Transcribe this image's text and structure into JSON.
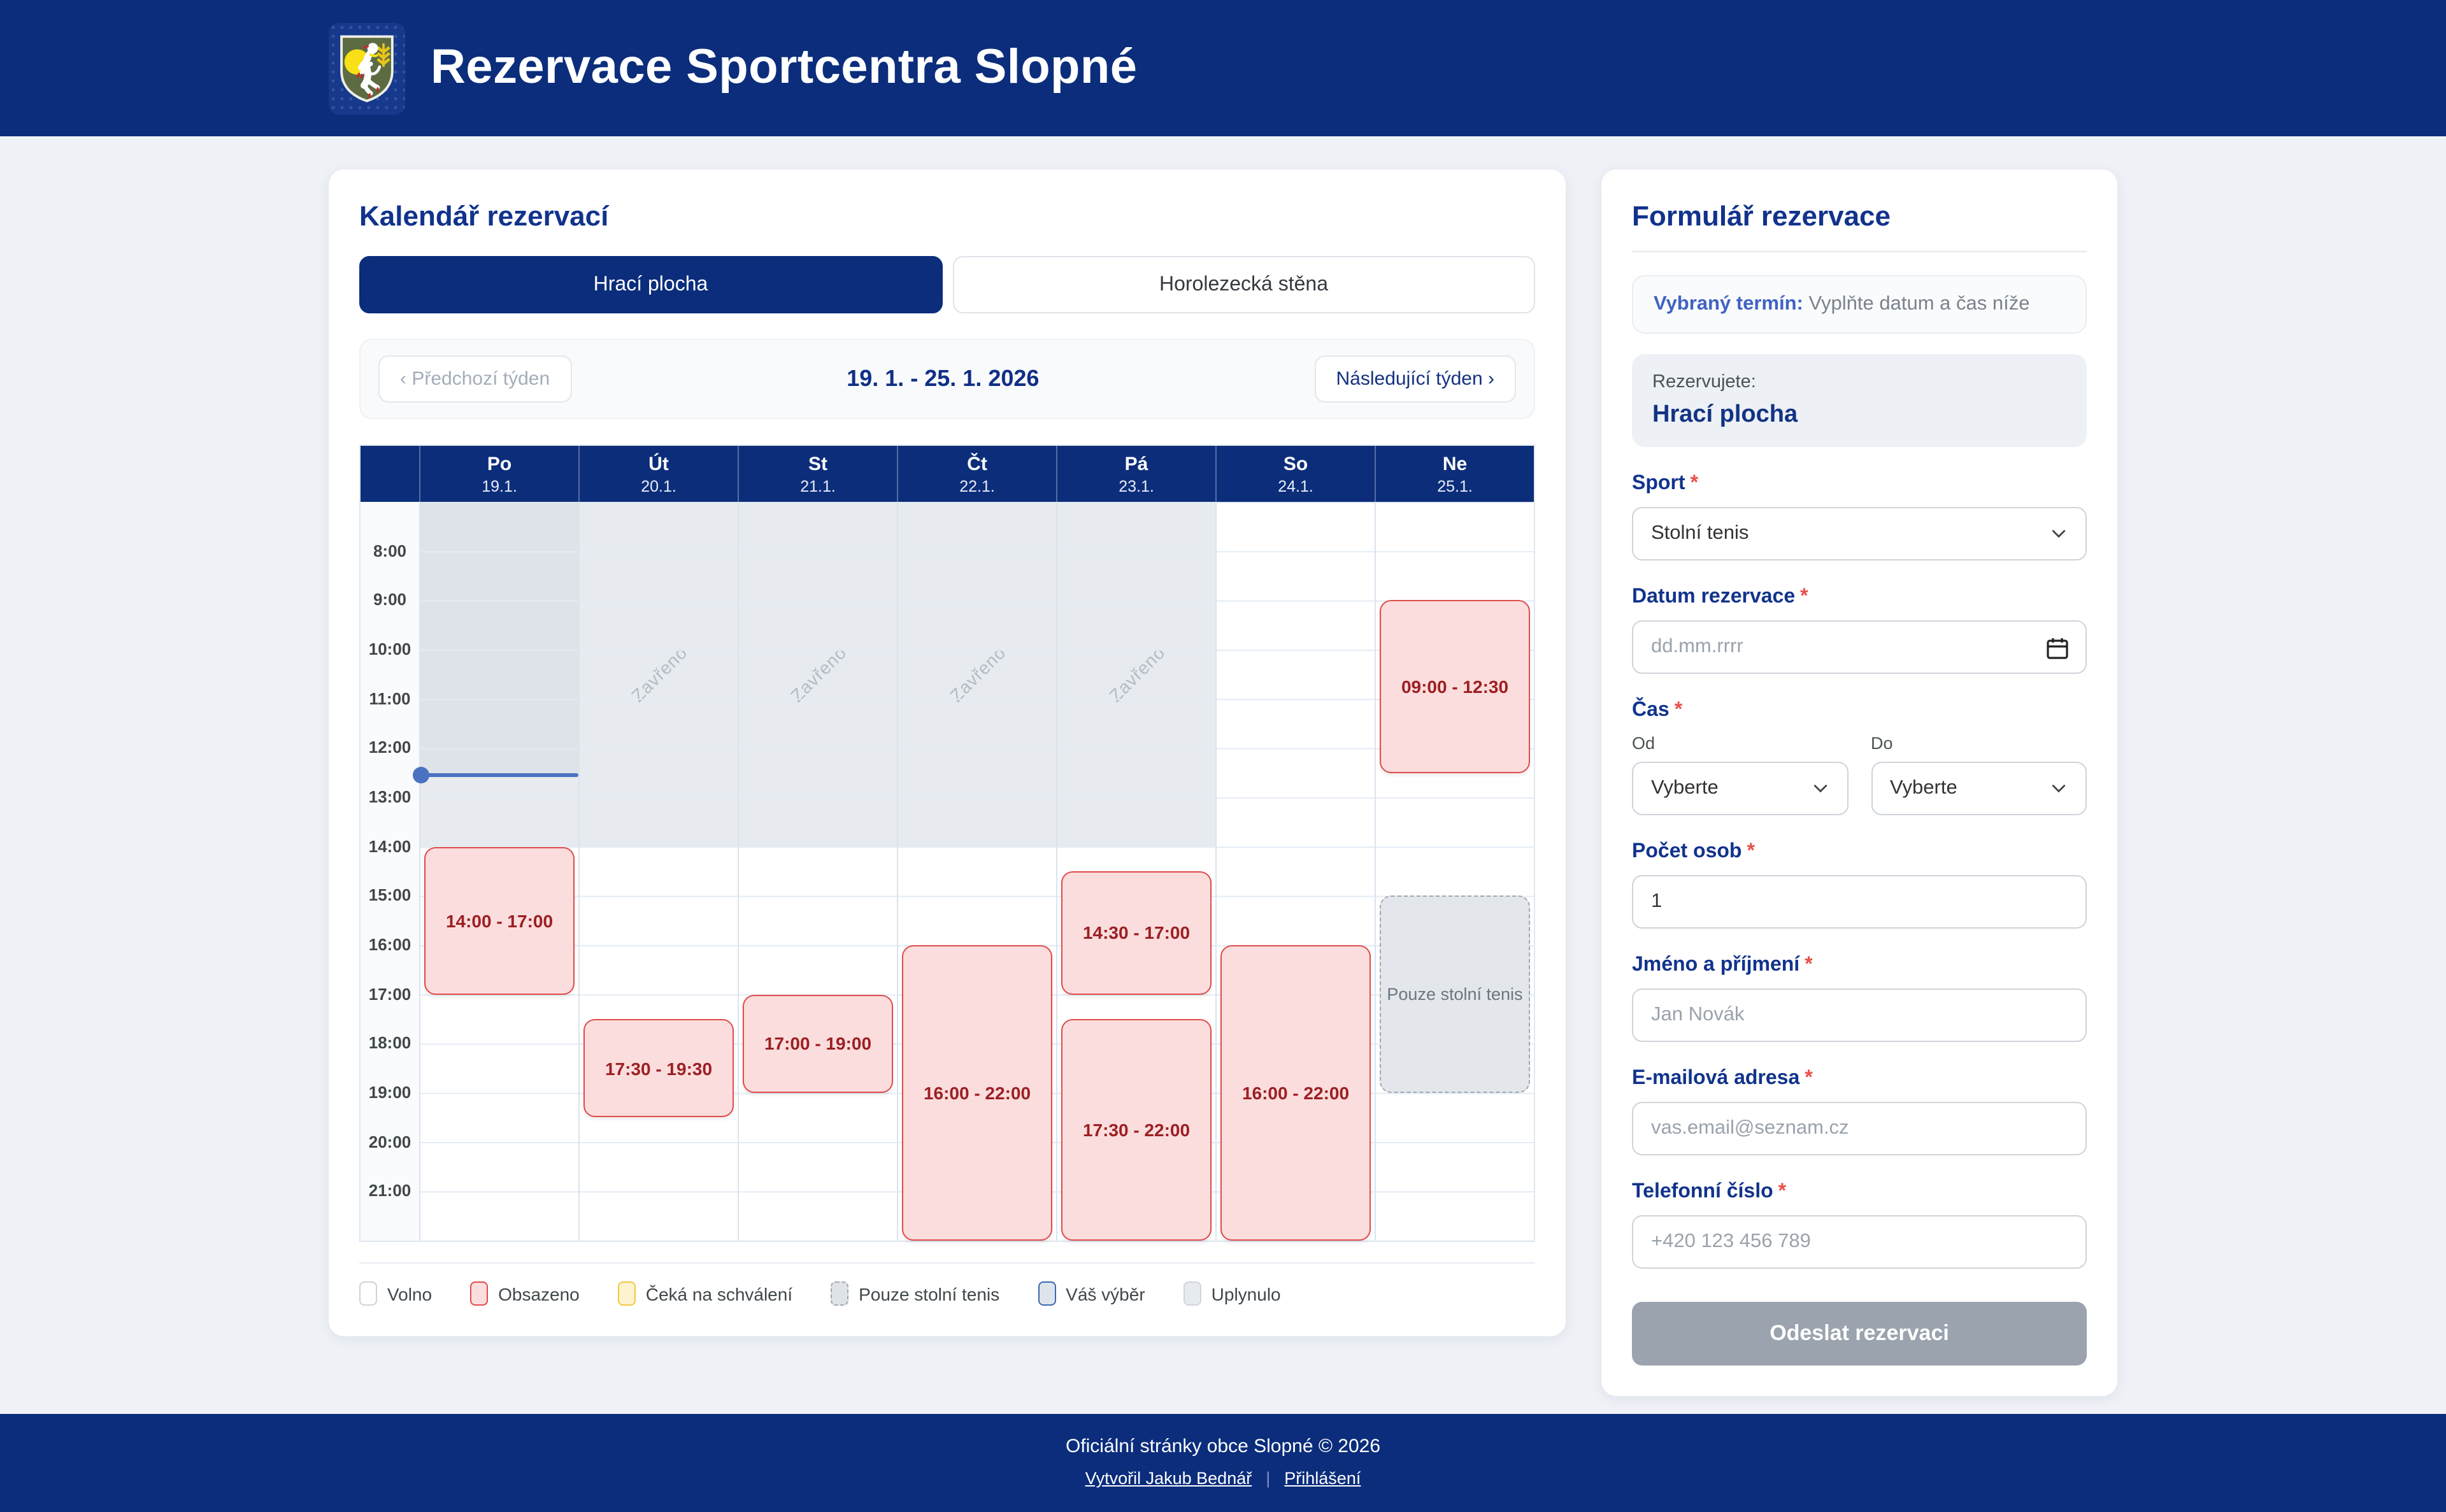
{
  "app": {
    "title": "Rezervace Sportcentra Slopné",
    "logo": "slopne-coat-of-arms"
  },
  "calendar": {
    "title": "Kalendář rezervací",
    "tabs": [
      {
        "label": "Hrací plocha",
        "active": true
      },
      {
        "label": "Horolezecká stěna",
        "active": false
      }
    ],
    "week_nav": {
      "prev": "‹ Předchozí týden",
      "range": "19. 1. - 25. 1. 2026",
      "next": "Následující týden ›",
      "prev_disabled": true
    },
    "grid": {
      "day_start_hour": 7,
      "day_end_hour": 22,
      "hour_labels": [
        "8:00",
        "9:00",
        "10:00",
        "11:00",
        "12:00",
        "13:00",
        "14:00",
        "15:00",
        "16:00",
        "17:00",
        "18:00",
        "19:00",
        "20:00",
        "21:00"
      ],
      "closed_text": "Zavřeno",
      "now": {
        "day": "Po",
        "time": "12:30"
      }
    },
    "days": [
      {
        "name": "Po",
        "date": "19.1.",
        "closed_until": "14:00",
        "past_until": "12:30",
        "events": [
          {
            "label": "14:00 - 17:00",
            "start": "14:00",
            "end": "17:00",
            "status": "obsazeno"
          }
        ]
      },
      {
        "name": "Út",
        "date": "20.1.",
        "closed_until": "14:00",
        "events": [
          {
            "label": "17:30 - 19:30",
            "start": "17:30",
            "end": "19:30",
            "status": "obsazeno"
          }
        ]
      },
      {
        "name": "St",
        "date": "21.1.",
        "closed_until": "14:00",
        "events": [
          {
            "label": "17:00 - 19:00",
            "start": "17:00",
            "end": "19:00",
            "status": "obsazeno"
          }
        ]
      },
      {
        "name": "Čt",
        "date": "22.1.",
        "closed_until": "14:00",
        "events": [
          {
            "label": "16:00 - 22:00",
            "start": "16:00",
            "end": "22:00",
            "status": "obsazeno"
          }
        ]
      },
      {
        "name": "Pá",
        "date": "23.1.",
        "closed_until": "14:00",
        "events": [
          {
            "label": "14:30 - 17:00",
            "start": "14:30",
            "end": "17:00",
            "status": "obsazeno"
          },
          {
            "label": "17:30 - 22:00",
            "start": "17:30",
            "end": "22:00",
            "status": "obsazeno"
          }
        ]
      },
      {
        "name": "So",
        "date": "24.1.",
        "events": [
          {
            "label": "16:00 - 22:00",
            "start": "16:00",
            "end": "22:00",
            "status": "obsazeno"
          }
        ]
      },
      {
        "name": "Ne",
        "date": "25.1.",
        "events": [
          {
            "label": "09:00 - 12:30",
            "start": "09:00",
            "end": "12:30",
            "status": "obsazeno"
          },
          {
            "label": "Pouze stolní tenis",
            "start": "15:00",
            "end": "19:00",
            "status": "pouze"
          }
        ]
      }
    ],
    "legend": [
      {
        "label": "Volno",
        "key": "volno"
      },
      {
        "label": "Obsazeno",
        "key": "obsazeno"
      },
      {
        "label": "Čeká na schválení",
        "key": "ceka"
      },
      {
        "label": "Pouze stolní tenis",
        "key": "pouze"
      },
      {
        "label": "Váš výběr",
        "key": "vyber"
      },
      {
        "label": "Uplynulo",
        "key": "uplynulo"
      }
    ]
  },
  "form": {
    "title": "Formulář rezervace",
    "required_marker": "*",
    "selected_term": {
      "label": "Vybraný termín:",
      "value": "Vyplňte datum a čas níže"
    },
    "reserving": {
      "label": "Rezervujete:",
      "value": "Hrací plocha"
    },
    "sport": {
      "label": "Sport",
      "value": "Stolní tenis"
    },
    "date": {
      "label": "Datum rezervace",
      "placeholder": "dd.mm.rrrr"
    },
    "time": {
      "label": "Čas",
      "from_label": "Od",
      "to_label": "Do",
      "from_value": "Vyberte",
      "to_value": "Vyberte"
    },
    "people": {
      "label": "Počet osob",
      "value": "1"
    },
    "name": {
      "label": "Jméno a příjmení",
      "placeholder": "Jan Novák"
    },
    "email": {
      "label": "E-mailová adresa",
      "placeholder": "vas.email@seznam.cz"
    },
    "phone": {
      "label": "Telefonní číslo",
      "placeholder": "+420 123 456 789"
    },
    "submit": {
      "label": "Odeslat rezervaci",
      "disabled": true
    }
  },
  "footer": {
    "copyright": "Oficiální stránky obce Slopné © 2026",
    "links": [
      {
        "label": "Vytvořil Jakub Bednář"
      },
      {
        "label": "Přihlášení"
      }
    ],
    "separator": "|"
  },
  "colors": {
    "navy": "#0b2d7c",
    "heading_blue": "#11338c",
    "accent_blue": "#3f62c4",
    "busy_fill": "#fbdddd",
    "busy_border": "#e14b4b",
    "busy_text": "#9c1f23",
    "closed_fill": "#e7ebef",
    "past_fill": "#dee3e9",
    "now_line": "#4a72c1",
    "pending_fill": "#fdf3cf",
    "pending_border": "#f2c744",
    "table_tennis_fill": "#e3e7eb",
    "selection_border": "#3e68b1",
    "elapsed_fill": "#e7eaee",
    "page_bg": "#eef1f6",
    "submit_disabled": "#9ba3ae"
  }
}
